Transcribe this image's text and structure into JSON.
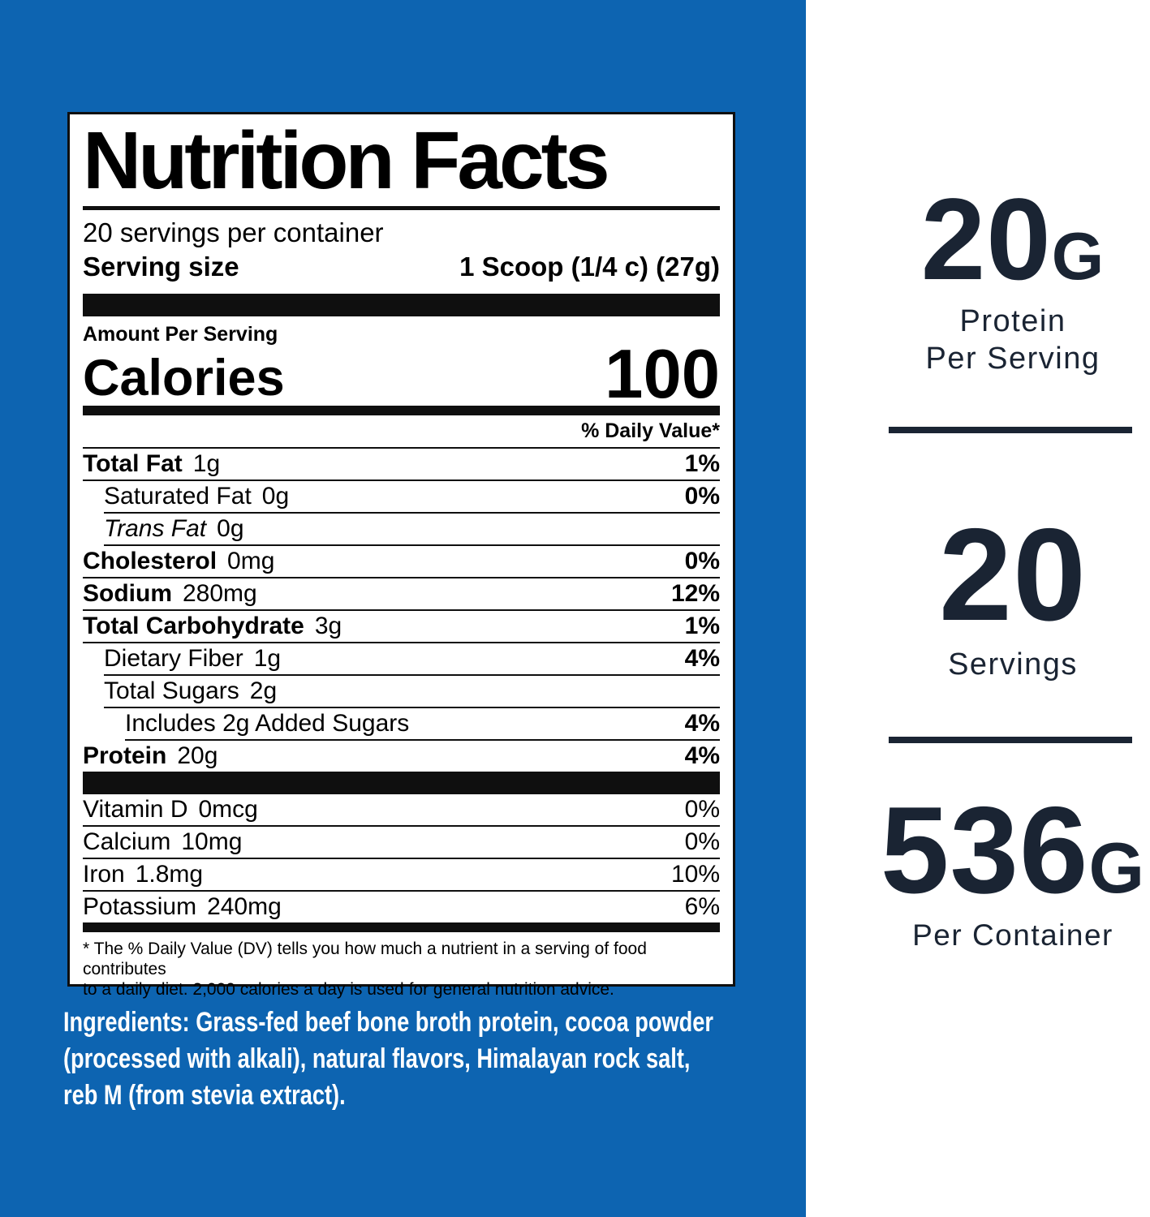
{
  "colors": {
    "background_blue": "#0d64b1",
    "panel_white": "#ffffff",
    "label_ink": "#0f0f0f",
    "side_navy": "#1a2433"
  },
  "nutrition_label": {
    "title": "Nutrition Facts",
    "servings_per_container": "20 servings per container",
    "serving_size": {
      "label": "Serving size",
      "value": "1 Scoop (1/4 c) (27g)"
    },
    "amount_per_serving": "Amount Per Serving",
    "calories": {
      "label": "Calories",
      "value": "100"
    },
    "daily_value_header": "% Daily Value*",
    "nutrients": [
      {
        "name": "Total Fat",
        "amount": "1g",
        "dv": "1%"
      },
      {
        "name": "Saturated Fat",
        "amount": "0g",
        "dv": "0%"
      },
      {
        "name": "Trans Fat",
        "amount": "0g",
        "dv": ""
      },
      {
        "name": "Cholesterol",
        "amount": "0mg",
        "dv": "0%"
      },
      {
        "name": "Sodium",
        "amount": "280mg",
        "dv": "12%"
      },
      {
        "name": "Total Carbohydrate",
        "amount": "3g",
        "dv": "1%"
      },
      {
        "name": "Dietary Fiber",
        "amount": "1g",
        "dv": "4%"
      },
      {
        "name": "Total Sugars",
        "amount": "2g",
        "dv": ""
      },
      {
        "name": "Includes 2g Added Sugars",
        "amount": "",
        "dv": "4%"
      },
      {
        "name": "Protein",
        "amount": "20g",
        "dv": "4%"
      }
    ],
    "micronutrients": [
      {
        "name": "Vitamin D",
        "amount": "0mcg",
        "dv": "0%"
      },
      {
        "name": "Calcium",
        "amount": "10mg",
        "dv": "0%"
      },
      {
        "name": "Iron",
        "amount": "1.8mg",
        "dv": "10%"
      },
      {
        "name": "Potassium",
        "amount": "240mg",
        "dv": "6%"
      }
    ],
    "footnote_lines": [
      "* The % Daily Value (DV) tells you how much a nutrient in a serving of food contributes",
      "to a daily diet. 2,000 calories a day is used for general nutrition advice."
    ]
  },
  "ingredients_lines": [
    "Ingredients: Grass-fed beef bone broth protein, cocoa powder",
    "(processed with alkali), natural flavors, Himalayan rock salt,",
    "reb M (from stevia extract)."
  ],
  "side_panel": {
    "stats": [
      {
        "value": "20",
        "unit": "G",
        "caption_line1": "Protein",
        "caption_line2": "Per Serving"
      },
      {
        "value": "20",
        "unit": "",
        "caption_line1": "Servings",
        "caption_line2": ""
      },
      {
        "value": "536",
        "unit": "G",
        "caption_line1": "Per Container",
        "caption_line2": ""
      }
    ]
  }
}
